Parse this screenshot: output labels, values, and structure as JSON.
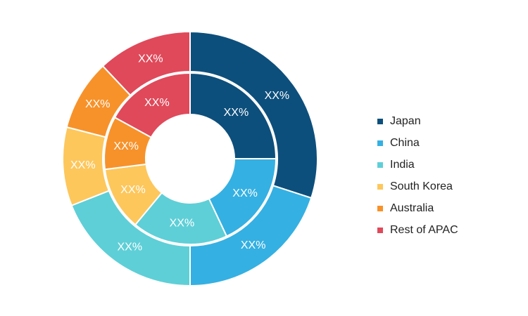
{
  "chart_data": {
    "type": "donut",
    "rings": 2,
    "categories": [
      "Japan",
      "China",
      "India",
      "South Korea",
      "Australia",
      "Rest of APAC"
    ],
    "colors": [
      "#0d4f7c",
      "#35b0e2",
      "#5ecfd7",
      "#fdc75c",
      "#f7922a",
      "#e0495a"
    ],
    "series": [
      {
        "ring": "inner",
        "values": [
          25,
          18,
          18,
          12,
          10,
          17
        ],
        "labels": [
          "XX%",
          "XX%",
          "XX%",
          "XX%",
          "XX%",
          "XX%"
        ]
      },
      {
        "ring": "outer",
        "values": [
          30,
          20,
          19,
          10,
          9,
          12
        ],
        "labels": [
          "XX%",
          "XX%",
          "XX%",
          "XX%",
          "XX%",
          "XX%"
        ]
      }
    ],
    "legend": {
      "position": "right",
      "items": [
        "Japan",
        "China",
        "India",
        "South Korea",
        "Australia",
        "Rest of APAC"
      ]
    },
    "title": "",
    "xlabel": "",
    "ylabel": ""
  }
}
